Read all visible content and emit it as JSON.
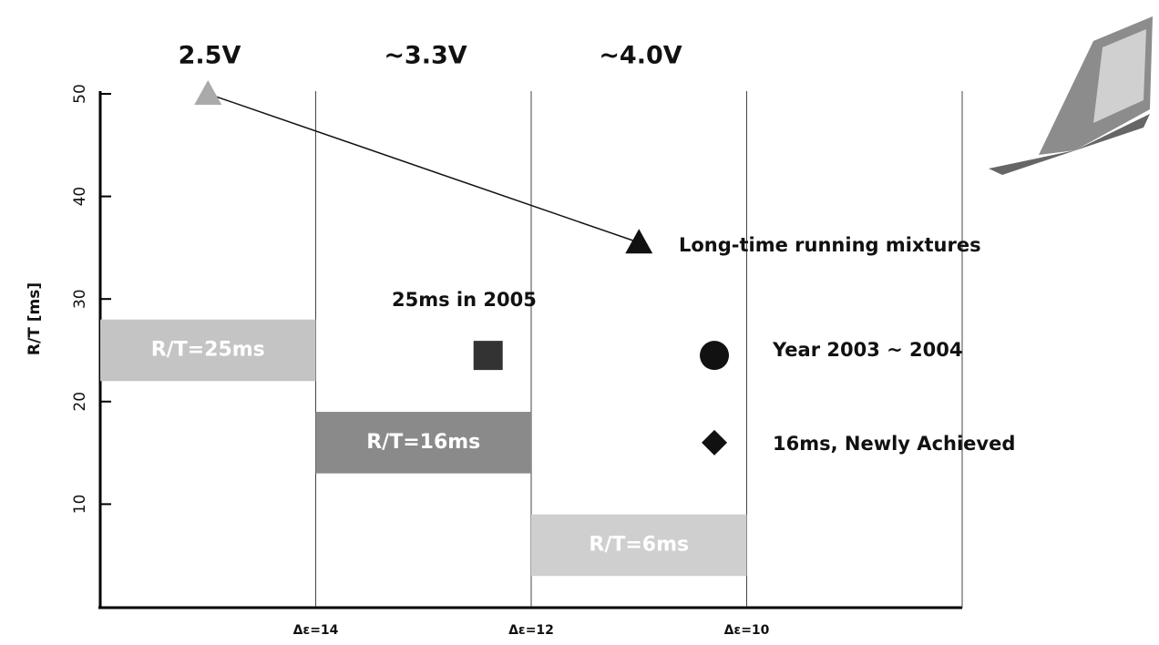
{
  "chart_data": {
    "type": "annotated-scatter",
    "y_label": "R/T [ms]",
    "ylim": [
      0,
      50
    ],
    "yticks": [
      10,
      20,
      30,
      40,
      50
    ],
    "xlim": [
      16,
      8
    ],
    "xticks": [
      {
        "value": 14,
        "label": "Δε=14"
      },
      {
        "value": 12,
        "label": "Δε=12"
      },
      {
        "value": 10,
        "label": "Δε=10"
      }
    ],
    "voltages": [
      "2.5V",
      "~3.3V",
      "~4.0V"
    ],
    "bands": [
      {
        "label": "R/T=25ms",
        "x": [
          16,
          14
        ],
        "y": [
          22,
          28
        ],
        "color": "#c4c4c4"
      },
      {
        "label": "R/T=16ms",
        "x": [
          14,
          12
        ],
        "y": [
          13,
          19
        ],
        "color": "#8a8a8a"
      },
      {
        "label": "R/T=6ms",
        "x": [
          12,
          10
        ],
        "y": [
          3,
          9
        ],
        "color": "#cfcfcf"
      }
    ],
    "series": [
      {
        "name": "Long-time running mixtures",
        "marker": "triangle",
        "colors": [
          "#aaaaaa",
          "#111111"
        ],
        "x": [
          15,
          11
        ],
        "y": [
          50,
          35.5
        ],
        "connected": true
      },
      {
        "name": "25ms in 2005",
        "marker": "square",
        "colors": [
          "#333333"
        ],
        "x": [
          12.4
        ],
        "y": [
          24.5
        ]
      },
      {
        "name": "Year 2003 ~ 2004",
        "marker": "circle",
        "colors": [
          "#111111"
        ],
        "x": [
          10.3
        ],
        "y": [
          24.5
        ]
      },
      {
        "name": "16ms, Newly Achieved",
        "marker": "diamond",
        "colors": [
          "#111111"
        ],
        "x": [
          10.3
        ],
        "y": [
          16
        ]
      }
    ]
  }
}
